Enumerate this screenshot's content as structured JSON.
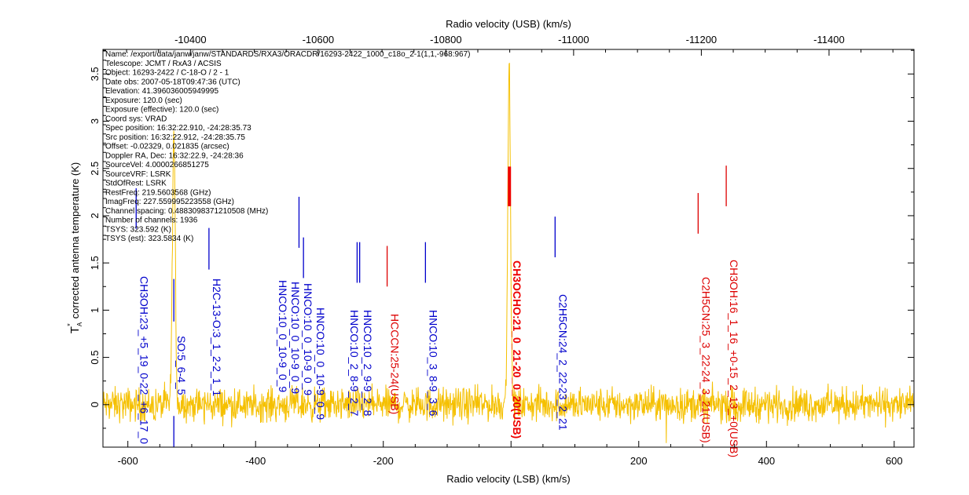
{
  "chart_data": {
    "type": "line",
    "xlabel": "Radio velocity (LSB) (km/s)",
    "x2label": "Radio velocity (USB) (km/s)",
    "ylabel": "corrected antenna temperature (K)",
    "ylabel_symbol": "T",
    "ylabel_sub": "A",
    "ylabel_sup": "*",
    "xlim": [
      -639,
      631
    ],
    "x2lim": [
      -10263,
      -11533
    ],
    "ylim": [
      -0.45,
      3.76
    ],
    "xticks": [
      -600,
      -400,
      -200,
      200,
      400,
      600
    ],
    "x2ticks": [
      -10400,
      -10600,
      -10800,
      -11000,
      -11200,
      -11400
    ],
    "yticks": [
      "0",
      "0.5",
      "1",
      "1.5",
      "2",
      "2.5",
      "3",
      "3.5"
    ],
    "grid": false,
    "spectrum": {
      "color": "#f5c000",
      "channels": 1936,
      "noise_rms_K": 0.08,
      "peaks": [
        {
          "velocity": -528,
          "peak_K": 2.85
        },
        {
          "velocity": -3,
          "peak_K": 3.55
        }
      ]
    },
    "line_markers": [
      {
        "velocity": -587,
        "top": 2.29,
        "bottom": 1.86,
        "color": "#0000cc"
      },
      {
        "velocity": -528,
        "top": 1.33,
        "bottom": 0.88,
        "color": "#0000cc"
      },
      {
        "velocity": -528,
        "top": -0.12,
        "bottom": -0.45,
        "color": "#0000cc"
      },
      {
        "velocity": -473,
        "top": 1.87,
        "bottom": 1.43,
        "color": "#0000cc"
      },
      {
        "velocity": -332,
        "top": 2.2,
        "bottom": 1.66,
        "color": "#0000cc"
      },
      {
        "velocity": -325,
        "top": 1.77,
        "bottom": 1.34,
        "color": "#0000cc"
      },
      {
        "velocity": -241,
        "top": 1.72,
        "bottom": 1.29,
        "color": "#0000cc"
      },
      {
        "velocity": -237,
        "top": 1.72,
        "bottom": 1.29,
        "color": "#0000cc"
      },
      {
        "velocity": -194,
        "top": 1.68,
        "bottom": 1.25,
        "color": "#dd0000"
      },
      {
        "velocity": -134,
        "top": 1.72,
        "bottom": 1.29,
        "color": "#0000cc"
      },
      {
        "velocity": -2.5,
        "top": 2.52,
        "bottom": 2.1,
        "color": "#ee0000",
        "bold": true
      },
      {
        "velocity": 69,
        "top": 1.99,
        "bottom": 1.56,
        "color": "#0000cc"
      },
      {
        "velocity": 293,
        "top": 2.24,
        "bottom": 1.81,
        "color": "#dd0000"
      },
      {
        "velocity": 337,
        "top": 2.53,
        "bottom": 2.1,
        "color": "#dd0000"
      }
    ],
    "line_labels": [
      {
        "text": "CH3OH:23_+5_19_0-22_+6_17_0",
        "velocity": -587,
        "color": "#0000cc"
      },
      {
        "text": "SO:5_6-4_5",
        "velocity": -528,
        "color": "#0000cc"
      },
      {
        "text": "H2C-13-O:3_1_2-2_1_1",
        "velocity": -473,
        "color": "#0000cc"
      },
      {
        "text": "HNCO:10_0_10-9_0_9",
        "velocity": -342,
        "color": "#0000cc"
      },
      {
        "text": "HNCO:10_0_10-9_0_9",
        "velocity": -340,
        "color": "#0000cc"
      },
      {
        "text": "HNCO:10_0_10-9_0_9",
        "velocity": -338,
        "color": "#0000cc"
      },
      {
        "text": "HNCO:10_0_10-9_0_9",
        "velocity": -325,
        "color": "#0000cc"
      },
      {
        "text": "HNCO:10_2_8-9_2_7",
        "velocity": -241,
        "color": "#0000cc"
      },
      {
        "text": "HNCO:10_2_9-9_2_8",
        "velocity": -237,
        "color": "#0000cc"
      },
      {
        "text": "HCCCN:25-24(USB)",
        "velocity": -194,
        "color": "#dd0000"
      },
      {
        "text": "HNCO:10_3_8-9_3_6",
        "velocity": -134,
        "color": "#0000cc"
      },
      {
        "text": "CH3OCHO:21_0_21-20_0_20(USB)",
        "velocity": -2.5,
        "color": "#ee0000",
        "bold": true
      },
      {
        "text": "C2H5CN:24_2_22-23_2_21",
        "velocity": 69,
        "color": "#0000cc"
      },
      {
        "text": "C2H5CN:25_3_22-24_3_21(USB)",
        "velocity": 293,
        "color": "#dd0000"
      },
      {
        "text": "CH3OH:16_1_16_+0-15_2_13_+0(USB)",
        "velocity": 337,
        "color": "#dd0000"
      }
    ]
  },
  "info": [
    "Name: /export/data/janw/janw/STANDARDS/RXA3/ORACDR/16293-2422_1000_c18o_2-1(1,1,-968:967)",
    "Telescope: JCMT / RxA3 / ACSIS",
    "Object: 16293-2422 / C-18-O / 2  - 1",
    "Date obs: 2007-05-18T09:47:36 (UTC)",
    "Elevation: 41.396036005949995",
    "Exposure: 120.0 (sec)",
    "Exposure (effective): 120.0 (sec)",
    "Coord sys: VRAD",
    "Spec position: 16:32:22.910, -24:28:35.73",
    "Src position: 16:32:22.912, -24:28:35.75",
    "Offset: -0.02329, 0.021835 (arcsec)",
    "Doppler RA, Dec: 16:32:22.9, -24:28:36",
    "SourceVel: 4.0000266851275",
    "SourceVRF: LSRK",
    "StdOfRest: LSRK",
    "RestFreq: 219.5603568 (GHz)",
    "ImagFreq: 227.559995223558 (GHz)",
    "Channel spacing: 0.4883098371210508 (MHz)",
    "Number of channels: 1936",
    "TSYS: 323.592 (K)",
    "TSYS (est): 323.5834 (K)"
  ]
}
